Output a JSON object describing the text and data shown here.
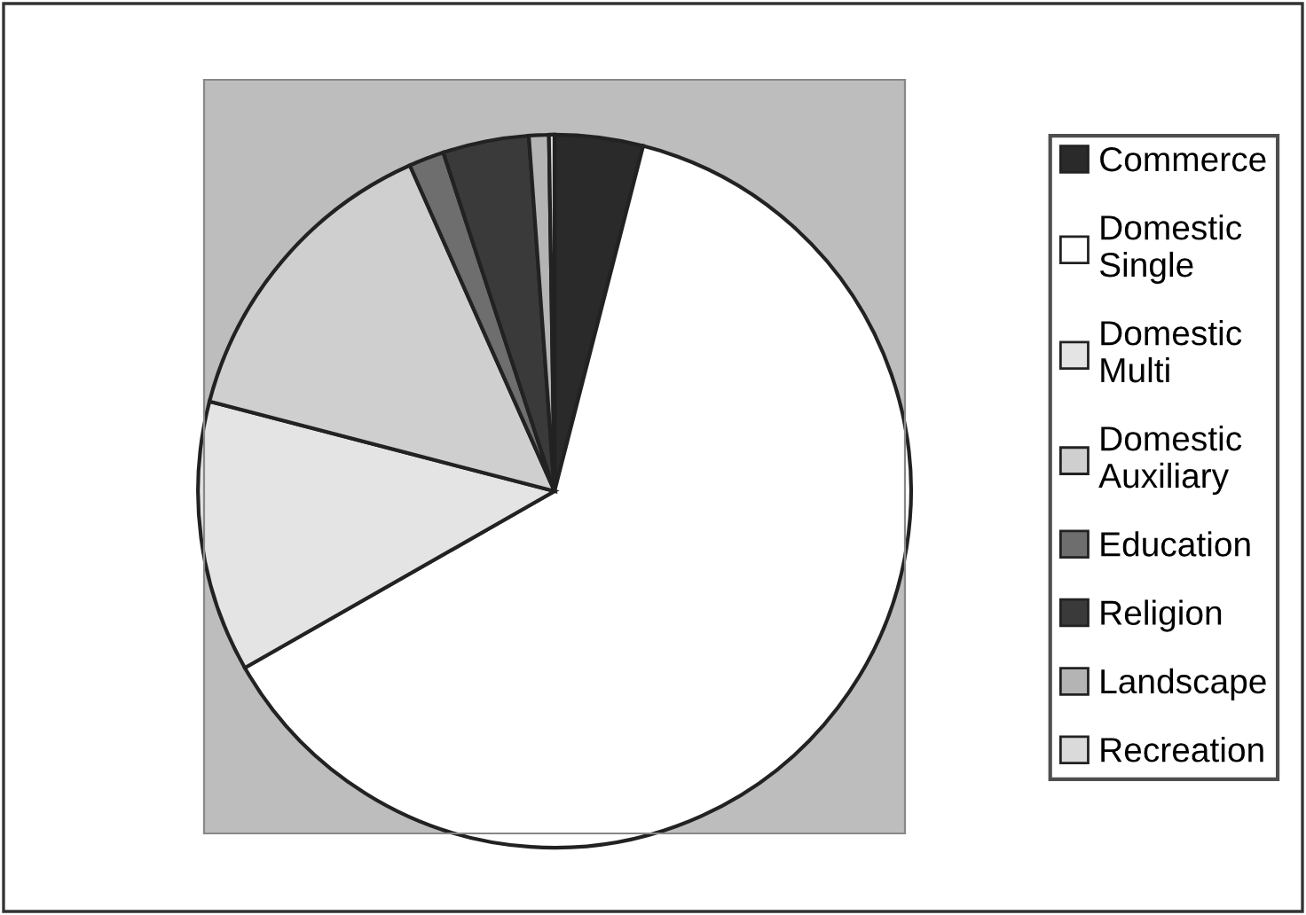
{
  "chart_data": {
    "type": "pie",
    "categories": [
      "Commerce",
      "Domestic\nSingle",
      "Domestic\nMulti",
      "Domestic\nAuxiliary",
      "Education",
      "Religion",
      "Landscape",
      "Recreation"
    ],
    "values": [
      4.0,
      62.75,
      12.3,
      14.3,
      1.6,
      3.9,
      0.9,
      0.25
    ],
    "colors": [
      "#2a2a2a",
      "#ffffff",
      "#e4e4e4",
      "#cfcfcf",
      "#6e6e6e",
      "#3a3a3a",
      "#b4b4b4",
      "#dadada"
    ],
    "legend": "right"
  }
}
